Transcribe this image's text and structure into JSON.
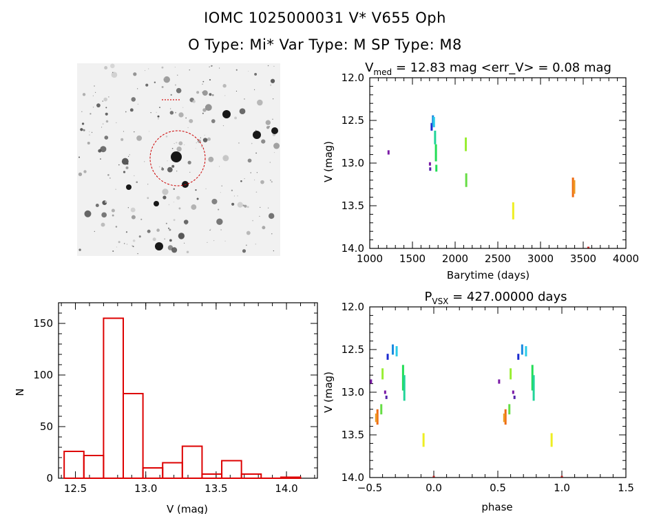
{
  "header": {
    "title_line1": "IOMC 1025000031    V* V655 Oph",
    "title_line2": "O Type: Mi*  Var Type: M  SP Type: M8"
  },
  "colors": {
    "histogram": "#dd0000",
    "circle": "#cc0000",
    "axes": "#000000"
  },
  "chart_data": [
    {
      "type": "scatter",
      "name": "light-curve",
      "title": "V_med = 12.83 mag <err_V> = 0.08 mag",
      "title_main": "V",
      "title_sub": "med",
      "title_rest": " = 12.83 mag <err_V> = 0.08 mag",
      "xlabel": "Barytime (days)",
      "ylabel": "V (mag)",
      "xlim": [
        1000,
        4000
      ],
      "ylim": [
        14.0,
        12.0
      ],
      "xticks": [
        1000,
        1500,
        2000,
        2500,
        3000,
        3500,
        4000
      ],
      "yticks": [
        12.0,
        12.5,
        13.0,
        13.5,
        14.0
      ],
      "xtick_labels": [
        "1000",
        "1500",
        "2000",
        "2500",
        "3000",
        "3500",
        "4000"
      ],
      "ytick_labels": [
        "12.0",
        "12.5",
        "13.0",
        "13.5",
        "14.0"
      ],
      "groups": [
        {
          "x": 1220,
          "y": [
            12.85,
            12.9
          ],
          "color": "#7a1aa6"
        },
        {
          "x": 1705,
          "y": [
            12.99,
            13.03
          ],
          "color": "#7a1aa6"
        },
        {
          "x": 1708,
          "y": [
            13.05,
            13.09
          ],
          "color": "#5522aa"
        },
        {
          "x": 1725,
          "y": [
            12.53,
            12.62
          ],
          "color": "#1a2ad0"
        },
        {
          "x": 1740,
          "y": [
            12.44,
            12.56
          ],
          "color": "#1a8ae0"
        },
        {
          "x": 1752,
          "y": [
            12.46,
            12.58
          ],
          "color": "#2acce8"
        },
        {
          "x": 1765,
          "y": [
            12.62,
            12.78
          ],
          "color": "#22d49a"
        },
        {
          "x": 1775,
          "y": [
            12.78,
            12.98
          ],
          "color": "#22dd55"
        },
        {
          "x": 1780,
          "y": [
            13.02,
            13.1
          ],
          "color": "#22dd55"
        },
        {
          "x": 2125,
          "y": [
            12.7,
            12.86
          ],
          "color": "#99ee33"
        },
        {
          "x": 2130,
          "y": [
            13.12,
            13.28
          ],
          "color": "#66dd44"
        },
        {
          "x": 2680,
          "y": [
            13.46,
            13.66
          ],
          "color": "#eeee22"
        },
        {
          "x": 3380,
          "y": [
            13.17,
            13.4
          ],
          "color": "#ee6a11"
        },
        {
          "x": 3395,
          "y": [
            13.2,
            13.36
          ],
          "color": "#ee9922"
        },
        {
          "x": 3560,
          "y": [
            13.98,
            13.99
          ],
          "color": "#cc2222"
        }
      ]
    },
    {
      "type": "bar",
      "name": "histogram",
      "xlabel": "V (mag)",
      "ylabel": "N",
      "xlim": [
        12.38,
        14.22
      ],
      "ylim": [
        0,
        170
      ],
      "xticks": [
        12.5,
        13.0,
        13.5,
        14.0
      ],
      "yticks": [
        0,
        50,
        100,
        150
      ],
      "xtick_labels": [
        "12.5",
        "13.0",
        "13.5",
        "14.0"
      ],
      "ytick_labels": [
        "0",
        "50",
        "100",
        "150"
      ],
      "bin_edges": [
        12.42,
        12.56,
        12.7,
        12.84,
        12.98,
        13.12,
        13.26,
        13.4,
        13.54,
        13.68,
        13.82,
        13.96,
        14.1
      ],
      "counts": [
        26,
        22,
        155,
        82,
        10,
        15,
        31,
        4,
        17,
        4,
        0,
        1
      ]
    },
    {
      "type": "scatter",
      "name": "phase-curve",
      "title": "P_VSX = 427.00000 days",
      "title_main": "P",
      "title_sub": "VSX",
      "title_rest": " = 427.00000 days",
      "xlabel": "phase",
      "ylabel": "V (mag)",
      "xlim": [
        -0.5,
        1.5
      ],
      "ylim": [
        14.0,
        12.0
      ],
      "xticks": [
        -0.5,
        0.0,
        0.5,
        1.0,
        1.5
      ],
      "yticks": [
        12.0,
        12.5,
        13.0,
        13.5,
        14.0
      ],
      "xtick_labels": [
        "−0.5",
        "0.0",
        "0.5",
        "1.0",
        "1.5"
      ],
      "ytick_labels": [
        "12.0",
        "12.5",
        "13.0",
        "13.5",
        "14.0"
      ],
      "groups": [
        {
          "x": -0.49,
          "y": [
            12.85,
            12.9
          ],
          "color": "#7a1aa6"
        },
        {
          "x": -0.37,
          "y": [
            13.04,
            13.08
          ],
          "color": "#5522aa"
        },
        {
          "x": -0.38,
          "y": [
            12.98,
            13.02
          ],
          "color": "#7a1aa6"
        },
        {
          "x": -0.36,
          "y": [
            12.55,
            12.62
          ],
          "color": "#1a2ad0"
        },
        {
          "x": -0.32,
          "y": [
            12.44,
            12.56
          ],
          "color": "#1a8ae0"
        },
        {
          "x": -0.29,
          "y": [
            12.46,
            12.58
          ],
          "color": "#2acce8"
        },
        {
          "x": -0.24,
          "y": [
            12.68,
            12.98
          ],
          "color": "#22dd55"
        },
        {
          "x": -0.23,
          "y": [
            12.8,
            13.1
          ],
          "color": "#22d49a"
        },
        {
          "x": -0.4,
          "y": [
            12.72,
            12.85
          ],
          "color": "#99ee33"
        },
        {
          "x": -0.41,
          "y": [
            13.14,
            13.26
          ],
          "color": "#66dd44"
        },
        {
          "x": -0.44,
          "y": [
            13.2,
            13.38
          ],
          "color": "#ee6a11"
        },
        {
          "x": -0.45,
          "y": [
            13.25,
            13.35
          ],
          "color": "#ee9922"
        },
        {
          "x": -0.08,
          "y": [
            13.48,
            13.64
          ],
          "color": "#eeee22"
        },
        {
          "x": 0.0,
          "y": [
            13.98,
            13.99
          ],
          "color": "#cc2222"
        },
        {
          "x": 0.51,
          "y": [
            12.85,
            12.9
          ],
          "color": "#7a1aa6"
        },
        {
          "x": 0.62,
          "y": [
            12.98,
            13.02
          ],
          "color": "#7a1aa6"
        },
        {
          "x": 0.63,
          "y": [
            13.04,
            13.08
          ],
          "color": "#5522aa"
        },
        {
          "x": 0.66,
          "y": [
            12.55,
            12.62
          ],
          "color": "#1a2ad0"
        },
        {
          "x": 0.69,
          "y": [
            12.44,
            12.56
          ],
          "color": "#1a8ae0"
        },
        {
          "x": 0.72,
          "y": [
            12.46,
            12.58
          ],
          "color": "#2acce8"
        },
        {
          "x": 0.77,
          "y": [
            12.68,
            12.98
          ],
          "color": "#22dd55"
        },
        {
          "x": 0.78,
          "y": [
            12.8,
            13.1
          ],
          "color": "#22d49a"
        },
        {
          "x": 0.6,
          "y": [
            12.72,
            12.85
          ],
          "color": "#99ee33"
        },
        {
          "x": 0.59,
          "y": [
            13.14,
            13.26
          ],
          "color": "#66dd44"
        },
        {
          "x": 0.56,
          "y": [
            13.2,
            13.38
          ],
          "color": "#ee6a11"
        },
        {
          "x": 0.55,
          "y": [
            13.25,
            13.35
          ],
          "color": "#ee9922"
        },
        {
          "x": 0.92,
          "y": [
            13.48,
            13.64
          ],
          "color": "#eeee22"
        },
        {
          "x": 1.0,
          "y": [
            13.98,
            13.99
          ],
          "color": "#cc2222"
        }
      ]
    }
  ]
}
